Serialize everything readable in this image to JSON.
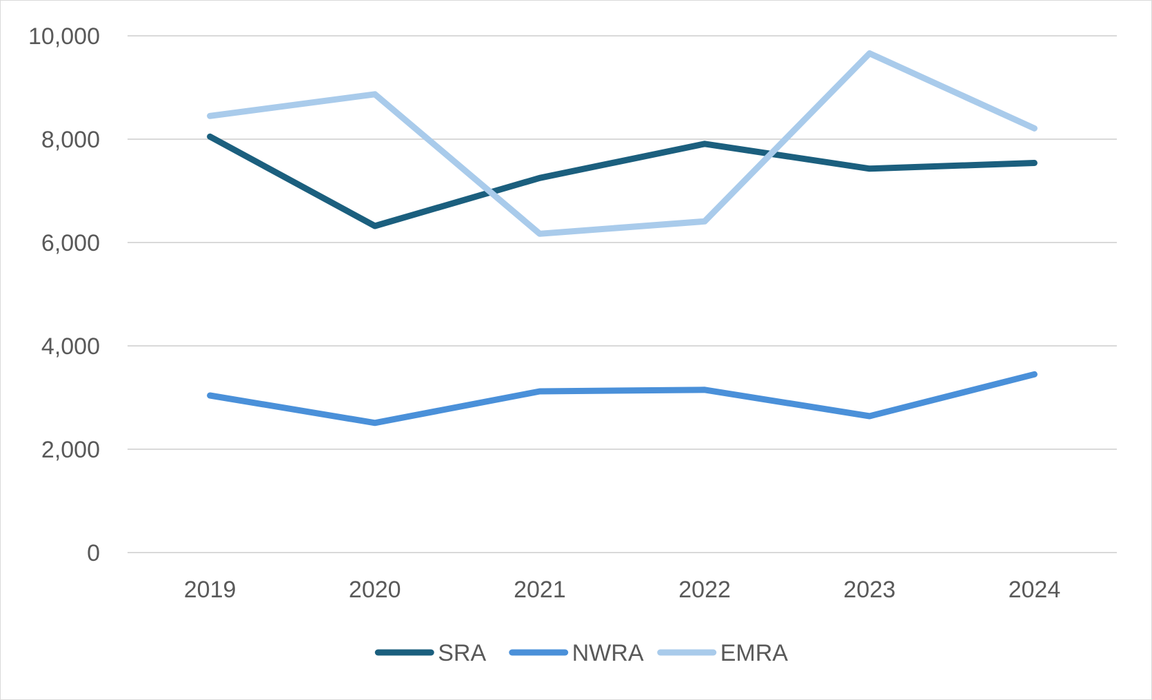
{
  "chart_data": {
    "type": "line",
    "title": "",
    "xlabel": "",
    "ylabel": "",
    "categories": [
      "2019",
      "2020",
      "2021",
      "2022",
      "2023",
      "2024"
    ],
    "ylim": [
      0,
      10000
    ],
    "yticks": [
      0,
      2000,
      4000,
      6000,
      8000,
      10000
    ],
    "ytick_labels": [
      "0",
      "2,000",
      "4,000",
      "6,000",
      "8,000",
      "10,000"
    ],
    "grid": true,
    "legend_position": "bottom",
    "series": [
      {
        "name": "SRA",
        "color": "#1b5f7e",
        "values": [
          8050,
          6320,
          7250,
          7910,
          7430,
          7540
        ]
      },
      {
        "name": "NWRA",
        "color": "#4a90d9",
        "values": [
          3040,
          2510,
          3120,
          3150,
          2640,
          3450
        ]
      },
      {
        "name": "EMRA",
        "color": "#a9cbeb",
        "values": [
          8450,
          8870,
          6170,
          6410,
          9660,
          8210
        ]
      }
    ]
  }
}
